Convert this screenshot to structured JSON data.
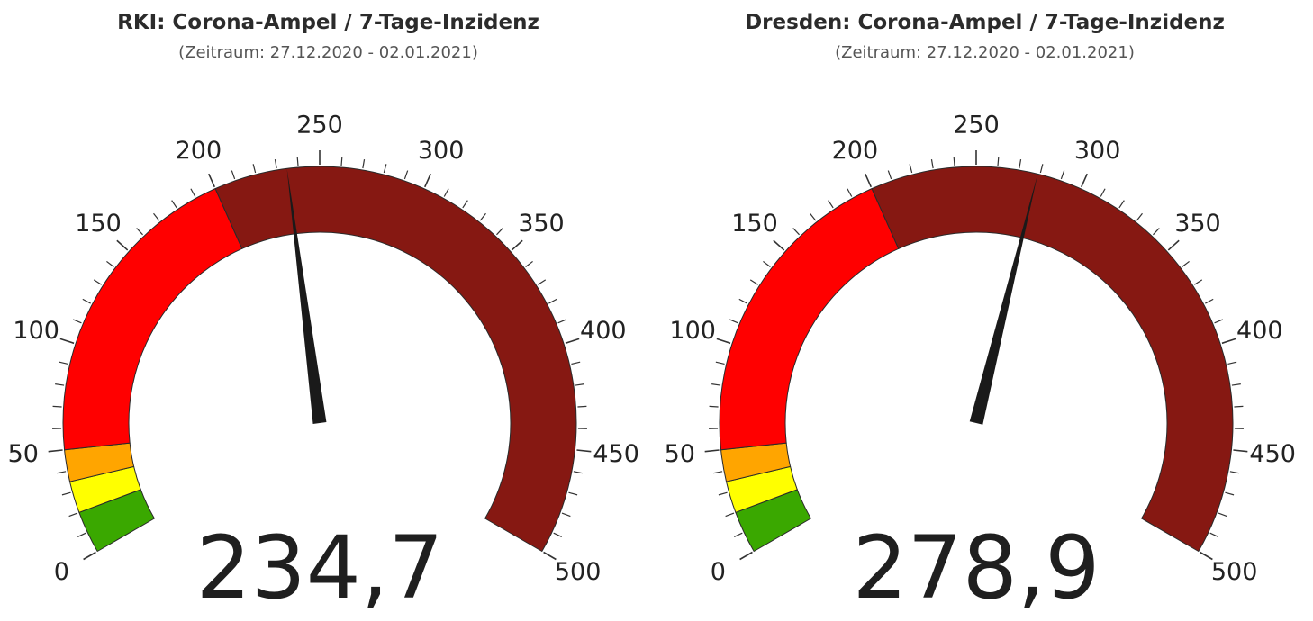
{
  "chart_data": [
    {
      "type": "gauge",
      "title": "RKI: Corona-Ampel / 7-Tage-Inzidenz",
      "subtitle": "(Zeitraum: 27.12.2020 - 02.01.2021)",
      "value": 234.7,
      "value_label": "234,7",
      "range": [
        0,
        500
      ],
      "tick_labels": [
        "0",
        "50",
        "100",
        "150",
        "200",
        "250",
        "300",
        "350",
        "400",
        "450",
        "500"
      ],
      "bands": [
        {
          "from": 0,
          "to": 20,
          "color": "#3aa800"
        },
        {
          "from": 20,
          "to": 35,
          "color": "#ffff00"
        },
        {
          "from": 35,
          "to": 50,
          "color": "#ffa500"
        },
        {
          "from": 50,
          "to": 200,
          "color": "#ff0000"
        },
        {
          "from": 200,
          "to": 500,
          "color": "#861812"
        }
      ]
    },
    {
      "type": "gauge",
      "title": "Dresden: Corona-Ampel / 7-Tage-Inzidenz",
      "subtitle": "(Zeitraum: 27.12.2020 - 02.01.2021)",
      "value": 278.9,
      "value_label": "278,9",
      "range": [
        0,
        500
      ],
      "tick_labels": [
        "0",
        "50",
        "100",
        "150",
        "200",
        "250",
        "300",
        "350",
        "400",
        "450",
        "500"
      ],
      "bands": [
        {
          "from": 0,
          "to": 20,
          "color": "#3aa800"
        },
        {
          "from": 20,
          "to": 35,
          "color": "#ffff00"
        },
        {
          "from": 35,
          "to": 50,
          "color": "#ffa500"
        },
        {
          "from": 50,
          "to": 200,
          "color": "#ff0000"
        },
        {
          "from": 200,
          "to": 500,
          "color": "#861812"
        }
      ]
    }
  ]
}
